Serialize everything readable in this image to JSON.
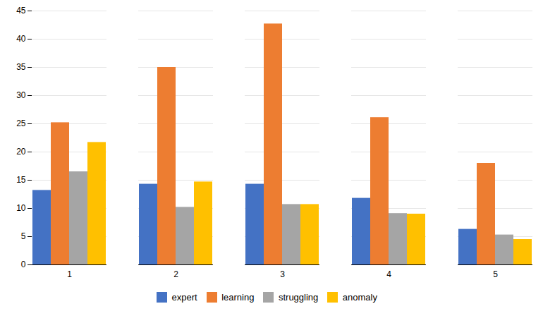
{
  "chart_data": {
    "type": "bar",
    "categories": [
      1,
      2,
      3,
      4,
      5
    ],
    "series": [
      {
        "name": "expert",
        "color": "#4472C4",
        "values": [
          13.2,
          14.3,
          14.3,
          11.8,
          6.3
        ]
      },
      {
        "name": "learning",
        "color": "#ED7D31",
        "values": [
          25.2,
          35.0,
          42.7,
          26.1,
          18.0
        ]
      },
      {
        "name": "struggling",
        "color": "#A5A5A5",
        "values": [
          16.5,
          10.2,
          10.7,
          9.1,
          5.3
        ]
      },
      {
        "name": "anomaly",
        "color": "#FFC000",
        "values": [
          21.7,
          14.7,
          10.7,
          9.0,
          4.5
        ]
      }
    ],
    "ylim": [
      0,
      45
    ],
    "yticks": [
      0,
      5,
      10,
      15,
      20,
      25,
      30,
      35,
      40,
      45
    ],
    "grid": true,
    "legend": "bottom"
  }
}
